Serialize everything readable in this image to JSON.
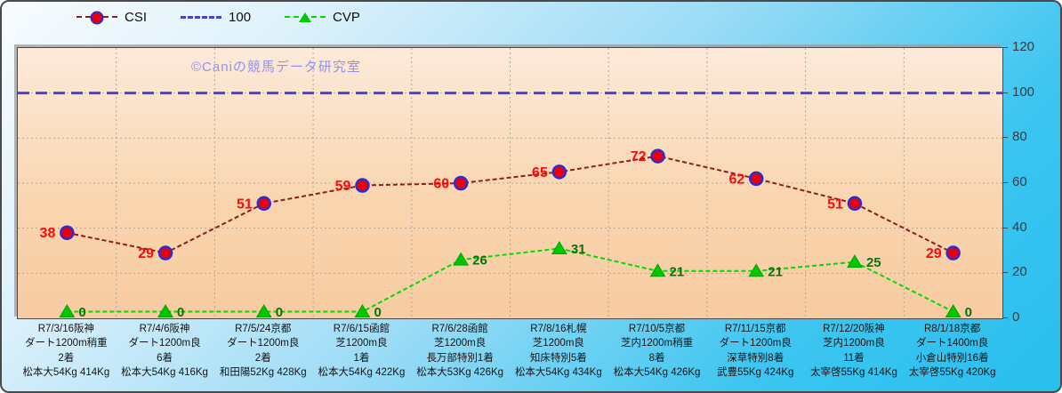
{
  "chart_data": {
    "type": "line",
    "title": "",
    "watermark": "©Caniの競馬データ研究室",
    "ylim": [
      0,
      120
    ],
    "y_ticks": [
      120,
      100,
      80,
      60,
      40,
      20,
      0
    ],
    "grid": true,
    "legend_position": "top",
    "categories": [
      [
        "R7/3/16阪神",
        "ダート1200m稍重",
        "2着",
        "松本大54Kg 414Kg"
      ],
      [
        "R7/4/6阪神",
        "ダート1200m良",
        "6着",
        "松本大54Kg 416Kg"
      ],
      [
        "R7/5/24京都",
        "ダート1200m良",
        "2着",
        "和田陽52Kg 428Kg"
      ],
      [
        "R7/6/15函館",
        "芝1200m良",
        "1着",
        "松本大54Kg 422Kg"
      ],
      [
        "R7/6/28函館",
        "芝1200m良",
        "長万部特別1着",
        "松本大53Kg 426Kg"
      ],
      [
        "R7/8/16札幌",
        "芝1200m良",
        "知床特別5着",
        "松本大54Kg 434Kg"
      ],
      [
        "R7/10/5京都",
        "芝内1200m稍重",
        "8着",
        "松本大54Kg 426Kg"
      ],
      [
        "R7/11/15京都",
        "ダート1200m良",
        "深草特別8着",
        "武豊55Kg 424Kg"
      ],
      [
        "R7/12/20阪神",
        "芝内1200m良",
        "11着",
        "太宰啓55Kg 414Kg"
      ],
      [
        "R8/1/18京都",
        "ダート1400m良",
        "小倉山特別16着",
        "太宰啓55Kg 420Kg"
      ]
    ],
    "series": [
      {
        "name": "CSI",
        "values": [
          38,
          29,
          51,
          59,
          60,
          65,
          72,
          62,
          51,
          29
        ],
        "line_color": "#8b1e1e",
        "dash": "5 3",
        "width": 2,
        "marker": "circle",
        "marker_fill": "#e8000f",
        "marker_edge": "#2d2dcf",
        "label_color": "#fb0a0a",
        "label_side": "left",
        "full_width": false
      },
      {
        "name": "100",
        "values": [
          100,
          100,
          100,
          100,
          100,
          100,
          100,
          100,
          100,
          100
        ],
        "line_color": "#4343da",
        "dash": "13 7",
        "width": 3,
        "marker": "none",
        "marker_fill": "",
        "marker_edge": "",
        "label_color": "",
        "label_side": "none",
        "full_width": true
      },
      {
        "name": "CVP",
        "values": [
          0,
          0,
          0,
          0,
          26,
          31,
          21,
          21,
          25,
          0
        ],
        "line_color": "#00dc00",
        "dash": "5 3",
        "width": 2,
        "marker": "triangle",
        "marker_fill": "#00c800",
        "marker_edge": "#00a000",
        "label_color": "#0c700c",
        "label_side": "right",
        "full_width": false
      }
    ],
    "grid_color": "#b3a79a"
  }
}
